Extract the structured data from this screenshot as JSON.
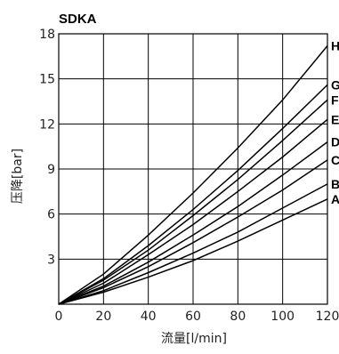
{
  "chart_data": {
    "type": "line",
    "title": "SDKA",
    "xlabel": "流量[l/min]",
    "ylabel": "压降[bar]",
    "xlim": [
      0,
      120
    ],
    "ylim": [
      0,
      18
    ],
    "x_ticks": [
      0,
      20,
      40,
      60,
      80,
      100,
      120
    ],
    "y_ticks": [
      3,
      6,
      9,
      12,
      15,
      18
    ],
    "grid": true,
    "x": [
      0,
      20,
      40,
      60,
      80,
      100,
      120
    ],
    "series": [
      {
        "name": "H",
        "values": [
          0,
          2.0,
          4.6,
          7.4,
          10.4,
          13.6,
          17.2
        ]
      },
      {
        "name": "G",
        "values": [
          0,
          1.7,
          3.9,
          6.3,
          8.9,
          11.7,
          14.6
        ]
      },
      {
        "name": "F",
        "values": [
          0,
          1.6,
          3.6,
          5.9,
          8.3,
          10.9,
          13.6
        ]
      },
      {
        "name": "E",
        "values": [
          0,
          1.4,
          3.3,
          5.3,
          7.5,
          9.8,
          12.3
        ]
      },
      {
        "name": "D",
        "values": [
          0,
          1.2,
          2.8,
          4.6,
          6.5,
          8.6,
          10.8
        ]
      },
      {
        "name": "C",
        "values": [
          0,
          1.1,
          2.5,
          4.1,
          5.8,
          7.6,
          9.6
        ]
      },
      {
        "name": "B",
        "values": [
          0,
          0.9,
          2.1,
          3.4,
          4.8,
          6.4,
          8.0
        ]
      },
      {
        "name": "A",
        "values": [
          0,
          0.8,
          1.8,
          2.9,
          4.2,
          5.6,
          7.0
        ]
      }
    ]
  }
}
